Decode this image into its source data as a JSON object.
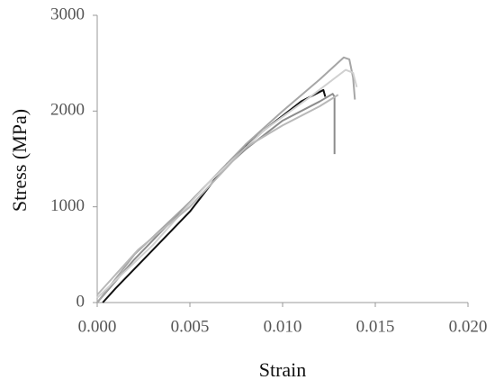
{
  "chart_data": {
    "type": "line",
    "x_label": "Strain",
    "y_label": "Stress (MPa)",
    "xlim": [
      0,
      0.02
    ],
    "ylim": [
      0,
      3000
    ],
    "xticks": [
      {
        "value": 0,
        "label": "0.000"
      },
      {
        "value": 0.005,
        "label": "0.005"
      },
      {
        "value": 0.01,
        "label": "0.010"
      },
      {
        "value": 0.015,
        "label": "0.015"
      },
      {
        "value": 0.02,
        "label": "0.020"
      }
    ],
    "yticks": [
      0,
      1000,
      2000,
      3000
    ],
    "grid": false,
    "series": [
      {
        "color": "#111111",
        "x": [
          0.0003,
          0.001,
          0.003,
          0.005,
          0.007,
          0.009,
          0.011,
          0.0122,
          0.0123
        ],
        "values": [
          0,
          150,
          550,
          950,
          1450,
          1800,
          2100,
          2220,
          2150
        ]
      },
      {
        "color": "#8c8c8c",
        "x": [
          0,
          0.002,
          0.004,
          0.006,
          0.008,
          0.01,
          0.012,
          0.0127,
          0.0128,
          0.0128
        ],
        "values": [
          0,
          450,
          850,
          1250,
          1600,
          1900,
          2100,
          2180,
          2150,
          1550
        ]
      },
      {
        "color": "#a6a6a6",
        "x": [
          0,
          0.002,
          0.005,
          0.008,
          0.01,
          0.012,
          0.0133,
          0.0136,
          0.0138,
          0.0139
        ],
        "values": [
          0,
          500,
          1050,
          1650,
          2000,
          2330,
          2560,
          2540,
          2350,
          2120
        ]
      },
      {
        "color": "#d0d0d0",
        "x": [
          0,
          0.003,
          0.006,
          0.009,
          0.0115,
          0.0134,
          0.0138,
          0.014
        ],
        "values": [
          50,
          600,
          1250,
          1800,
          2150,
          2430,
          2400,
          2250
        ]
      },
      {
        "color": "#b8b8b8",
        "x": [
          0,
          0.0022,
          0.005,
          0.008,
          0.01,
          0.012,
          0.013
        ],
        "values": [
          80,
          550,
          1000,
          1620,
          1850,
          2050,
          2170
        ]
      }
    ]
  }
}
